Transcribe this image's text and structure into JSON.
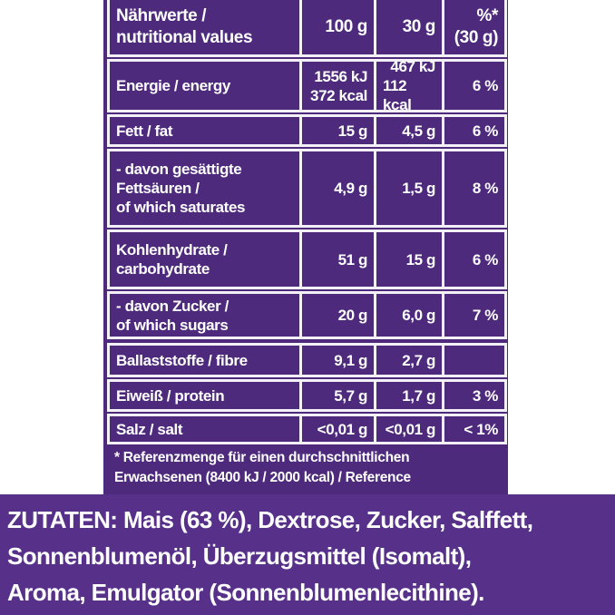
{
  "table": {
    "header": [
      [
        "Nährwerte /",
        "nutritional values"
      ],
      [
        "100 g"
      ],
      [
        "30 g"
      ],
      [
        "%*",
        "(30 g)"
      ]
    ],
    "rows": [
      [
        [
          "Energie / energy"
        ],
        [
          "1556 kJ",
          "372 kcal"
        ],
        [
          "467 kJ",
          "112 kcal"
        ],
        [
          "6 %"
        ]
      ],
      [
        [
          "Fett / fat"
        ],
        [
          "15 g"
        ],
        [
          "4,5 g"
        ],
        [
          "6 %"
        ]
      ],
      [
        [
          "- davon gesättigte",
          "Fettsäuren /",
          "of which saturates"
        ],
        [
          "4,9 g"
        ],
        [
          "1,5 g"
        ],
        [
          "8 %"
        ]
      ],
      [
        [
          "Kohlenhydrate /",
          "carbohydrate"
        ],
        [
          "51 g"
        ],
        [
          "15 g"
        ],
        [
          "6 %"
        ]
      ],
      [
        [
          "- davon Zucker /",
          "of which sugars"
        ],
        [
          "20 g"
        ],
        [
          "6,0 g"
        ],
        [
          "7 %"
        ]
      ],
      [
        [
          "Ballaststoffe / fibre"
        ],
        [
          "9,1 g"
        ],
        [
          "2,7 g"
        ],
        null
      ],
      [
        [
          "Eiweiß / protein"
        ],
        [
          "5,7 g"
        ],
        [
          "1,7 g"
        ],
        [
          "3 %"
        ]
      ],
      [
        [
          "Salz / salt"
        ],
        [
          "<0,01 g"
        ],
        [
          "<0,01 g"
        ],
        [
          "< 1%"
        ]
      ]
    ]
  },
  "footnote": [
    "* Referenzmenge für einen durchschnittlichen",
    "Erwachsenen (8400 kJ / 2000 kcal) / Reference"
  ],
  "ingredients": [
    "ZUTATEN: Mais (63 %), Dextrose, Zucker, Salffett,",
    "Sonnenblumenöl, Überzugsmittel (Isomalt),",
    "Aroma, Emulgator (Sonnenblumenlecithine)."
  ]
}
